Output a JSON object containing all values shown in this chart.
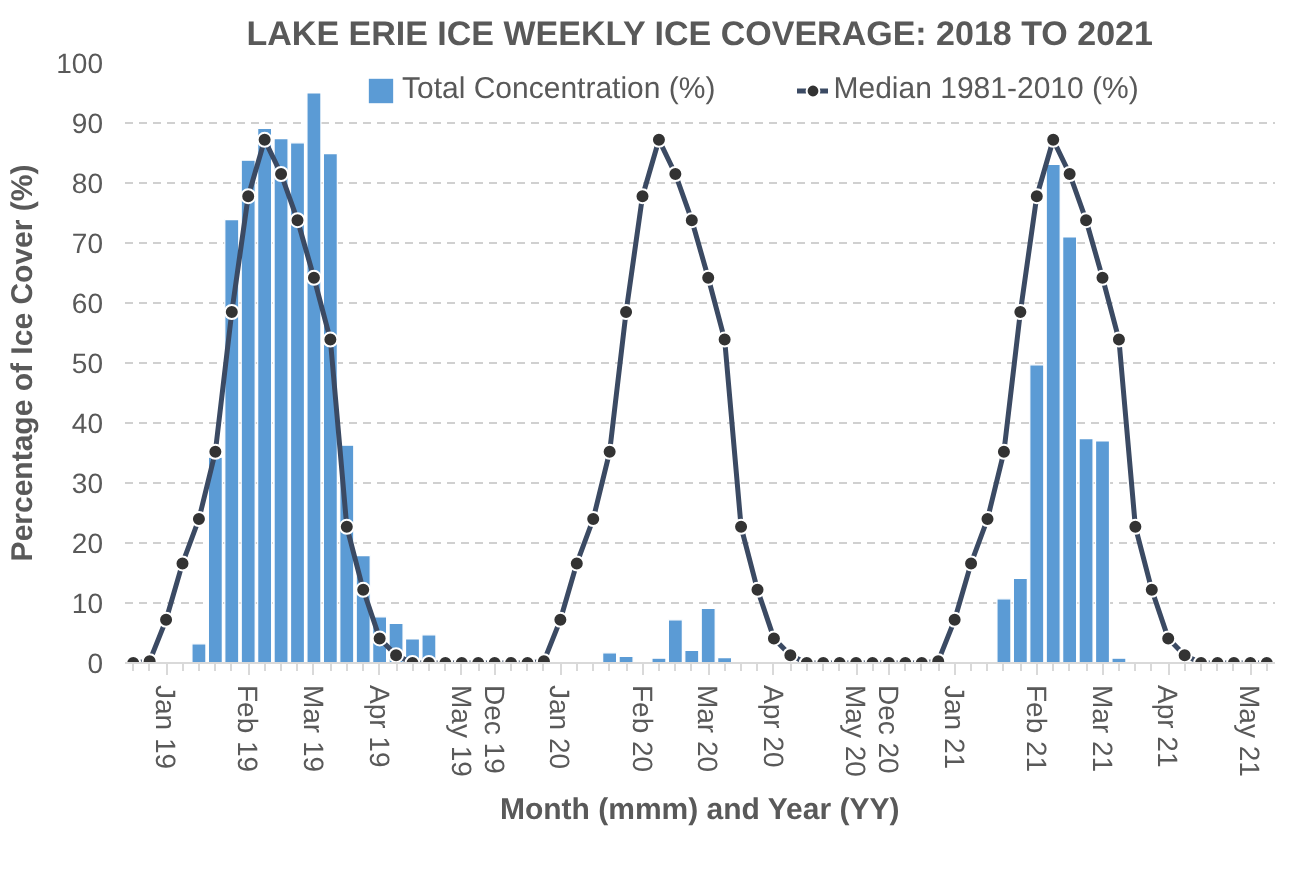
{
  "chart_data": {
    "type": "bar",
    "title": "LAKE ERIE ICE WEEKLY ICE COVERAGE: 2018 TO 2021",
    "xlabel": "Month (mmm) and Year (YY)",
    "ylabel": "Percentage of Ice Cover (%)",
    "categories": [
      null,
      null,
      "Jan 19",
      null,
      null,
      null,
      null,
      "Feb 19",
      null,
      null,
      null,
      "Mar 19",
      null,
      null,
      null,
      "Apr 19",
      null,
      null,
      null,
      null,
      "May 19",
      null,
      "Dec 19",
      null,
      null,
      null,
      "Jan 20",
      null,
      null,
      null,
      null,
      "Feb 20",
      null,
      null,
      null,
      "Mar 20",
      null,
      null,
      null,
      "Apr 20",
      null,
      null,
      null,
      null,
      "May 20",
      null,
      "Dec 20",
      null,
      null,
      null,
      "Jan 21",
      null,
      null,
      null,
      null,
      "Feb 21",
      null,
      null,
      null,
      "Mar 21",
      null,
      null,
      null,
      "Apr 21",
      null,
      null,
      null,
      null,
      "May 21",
      null
    ],
    "series": [
      {
        "name": "Total Concentration (%)",
        "color": "#5b9bd5",
        "values": [
          null,
          null,
          null,
          null,
          3.2,
          34.3,
          73.9,
          83.8,
          89.1,
          87.4,
          86.7,
          95.0,
          84.9,
          36.3,
          17.9,
          7.7,
          6.6,
          4.0,
          4.7,
          null,
          null,
          null,
          null,
          null,
          null,
          null,
          null,
          null,
          null,
          1.7,
          1.1,
          null,
          0.8,
          7.2,
          2.1,
          9.1,
          0.9,
          null,
          null,
          null,
          null,
          null,
          null,
          null,
          null,
          null,
          null,
          null,
          null,
          null,
          null,
          null,
          null,
          10.7,
          14.1,
          49.7,
          83.1,
          71.0,
          37.4,
          37.0,
          0.8,
          null,
          null,
          null,
          null,
          null,
          null,
          null,
          null,
          null
        ]
      },
      {
        "name": "Median 1981-2010 (%)",
        "type": "line",
        "color": "#3b4a63",
        "marker": "circle",
        "line_style": "solid",
        "values": [
          0,
          0.3,
          7.2,
          16.6,
          24,
          35.2,
          58.5,
          77.8,
          87.2,
          81.5,
          73.8,
          64.2,
          53.9,
          22.7,
          12.2,
          4.1,
          1.3,
          0,
          0,
          0,
          0,
          0,
          0,
          0,
          0,
          0.3,
          7.2,
          16.6,
          24,
          35.2,
          58.5,
          77.8,
          87.2,
          81.5,
          73.8,
          64.2,
          53.9,
          22.7,
          12.2,
          4.1,
          1.3,
          0,
          0,
          0,
          0,
          0,
          0,
          0,
          0,
          0.3,
          7.2,
          16.6,
          24,
          35.2,
          58.5,
          77.8,
          87.2,
          81.5,
          73.8,
          64.2,
          53.9,
          22.7,
          12.2,
          4.1,
          1.3,
          0,
          0,
          0,
          0,
          0
        ]
      }
    ],
    "ylim": [
      0,
      100
    ],
    "yticks": [
      0,
      10,
      20,
      30,
      40,
      50,
      60,
      70,
      80,
      90,
      100
    ],
    "grid": "y",
    "legend": "top"
  }
}
